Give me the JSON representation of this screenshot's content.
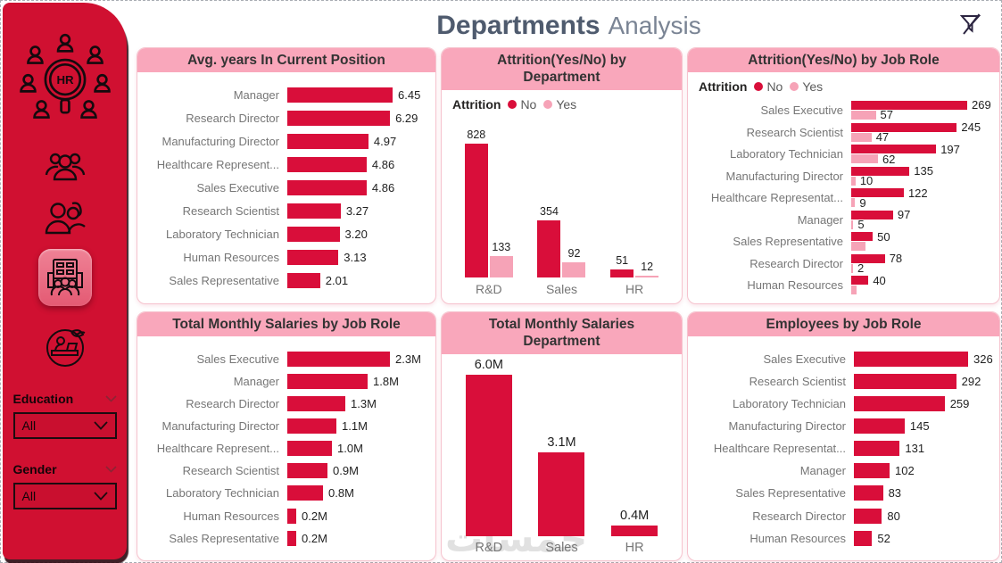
{
  "page": {
    "title_bold": "Departments",
    "title_light": "Analysis"
  },
  "colors": {
    "primary": "#D90E3A",
    "secondary": "#F6A3B7",
    "sidebar": "#D01031",
    "card_header": "#F9A7BB",
    "title_dark": "#4F5B6E",
    "label_gray": "#767676"
  },
  "sidebar": {
    "logo_text": "HR",
    "icons": [
      "hr-network-logo",
      "group-icon",
      "people-pair-icon",
      "departments-icon",
      "training-icon"
    ],
    "filters": [
      {
        "label": "Education",
        "value": "All"
      },
      {
        "label": "Gender",
        "value": "All"
      }
    ]
  },
  "watermark": "خمسات",
  "charts": [
    {
      "id": "avg-years",
      "type": "bar",
      "orientation": "horizontal",
      "title": "Avg. years In Current Position",
      "categories": [
        "Manager",
        "Research Director",
        "Manufacturing Director",
        "Healthcare Represent...",
        "Sales Executive",
        "Research Scientist",
        "Laboratory Technician",
        "Human Resources",
        "Sales Representative"
      ],
      "values": [
        6.45,
        6.29,
        4.97,
        4.86,
        4.86,
        3.27,
        3.2,
        3.13,
        2.01
      ],
      "labels": [
        "6.45",
        "6.29",
        "4.97",
        "4.86",
        "4.86",
        "3.27",
        "3.20",
        "3.13",
        "2.01"
      ],
      "max": 6.45
    },
    {
      "id": "attrition-by-department",
      "type": "bar",
      "orientation": "vertical",
      "title": "Attrition(Yes/No) by Department",
      "legend": {
        "title": "Attrition",
        "items": [
          {
            "name": "No",
            "color": "#D90E3A"
          },
          {
            "name": "Yes",
            "color": "#F6A3B7"
          }
        ]
      },
      "categories": [
        "R&D",
        "Sales",
        "HR"
      ],
      "series": [
        {
          "name": "No",
          "values": [
            828,
            354,
            51
          ],
          "labels": [
            "828",
            "354",
            "51"
          ]
        },
        {
          "name": "Yes",
          "values": [
            133,
            92,
            12
          ],
          "labels": [
            "133",
            "92",
            "12"
          ]
        }
      ],
      "max": 828
    },
    {
      "id": "attrition-by-job-role",
      "type": "bar",
      "orientation": "horizontal-grouped",
      "title": "Attrition(Yes/No) by Job Role",
      "legend": {
        "title": "Attrition",
        "items": [
          {
            "name": "No",
            "color": "#D90E3A"
          },
          {
            "name": "Yes",
            "color": "#F6A3B7"
          }
        ]
      },
      "categories": [
        "Sales Executive",
        "Research Scientist",
        "Laboratory Technician",
        "Manufacturing Director",
        "Healthcare Representat...",
        "Manager",
        "Sales Representative",
        "Research Director",
        "Human Resources"
      ],
      "series": [
        {
          "name": "No",
          "values": [
            269,
            245,
            197,
            135,
            122,
            97,
            50,
            78,
            40
          ],
          "labels": [
            "269",
            "245",
            "197",
            "135",
            "122",
            "97",
            "50",
            "78",
            "40"
          ]
        },
        {
          "name": "Yes",
          "values": [
            57,
            47,
            62,
            10,
            9,
            5,
            33,
            2,
            12
          ],
          "labels": [
            "57",
            "47",
            "62",
            "10",
            "9",
            "5",
            "",
            "2",
            ""
          ]
        }
      ],
      "max": 269
    },
    {
      "id": "salaries-by-job-role",
      "type": "bar",
      "orientation": "horizontal",
      "title": "Total Monthly Salaries by Job Role",
      "categories": [
        "Sales Executive",
        "Manager",
        "Research Director",
        "Manufacturing Director",
        "Healthcare Represent...",
        "Research Scientist",
        "Laboratory Technician",
        "Human Resources",
        "Sales Representative"
      ],
      "values": [
        2.3,
        1.8,
        1.3,
        1.1,
        1.0,
        0.9,
        0.8,
        0.2,
        0.2
      ],
      "labels": [
        "2.3M",
        "1.8M",
        "1.3M",
        "1.1M",
        "1.0M",
        "0.9M",
        "0.8M",
        "0.2M",
        "0.2M"
      ],
      "max": 2.3
    },
    {
      "id": "salaries-by-department",
      "type": "bar",
      "orientation": "vertical",
      "title": "Total Monthly Salaries Department",
      "categories": [
        "R&D",
        "Sales",
        "HR"
      ],
      "series": [
        {
          "name": "Total",
          "values": [
            6.0,
            3.1,
            0.4
          ],
          "labels": [
            "6.0M",
            "3.1M",
            "0.4M"
          ]
        }
      ],
      "max": 6.0
    },
    {
      "id": "employees-by-job-role",
      "type": "bar",
      "orientation": "horizontal",
      "title": "Employees by Job Role",
      "categories": [
        "Sales Executive",
        "Research Scientist",
        "Laboratory Technician",
        "Manufacturing Director",
        "Healthcare Representat...",
        "Manager",
        "Sales Representative",
        "Research Director",
        "Human Resources"
      ],
      "values": [
        326,
        292,
        259,
        145,
        131,
        102,
        83,
        80,
        52
      ],
      "labels": [
        "326",
        "292",
        "259",
        "145",
        "131",
        "102",
        "83",
        "80",
        "52"
      ],
      "max": 326
    }
  ]
}
